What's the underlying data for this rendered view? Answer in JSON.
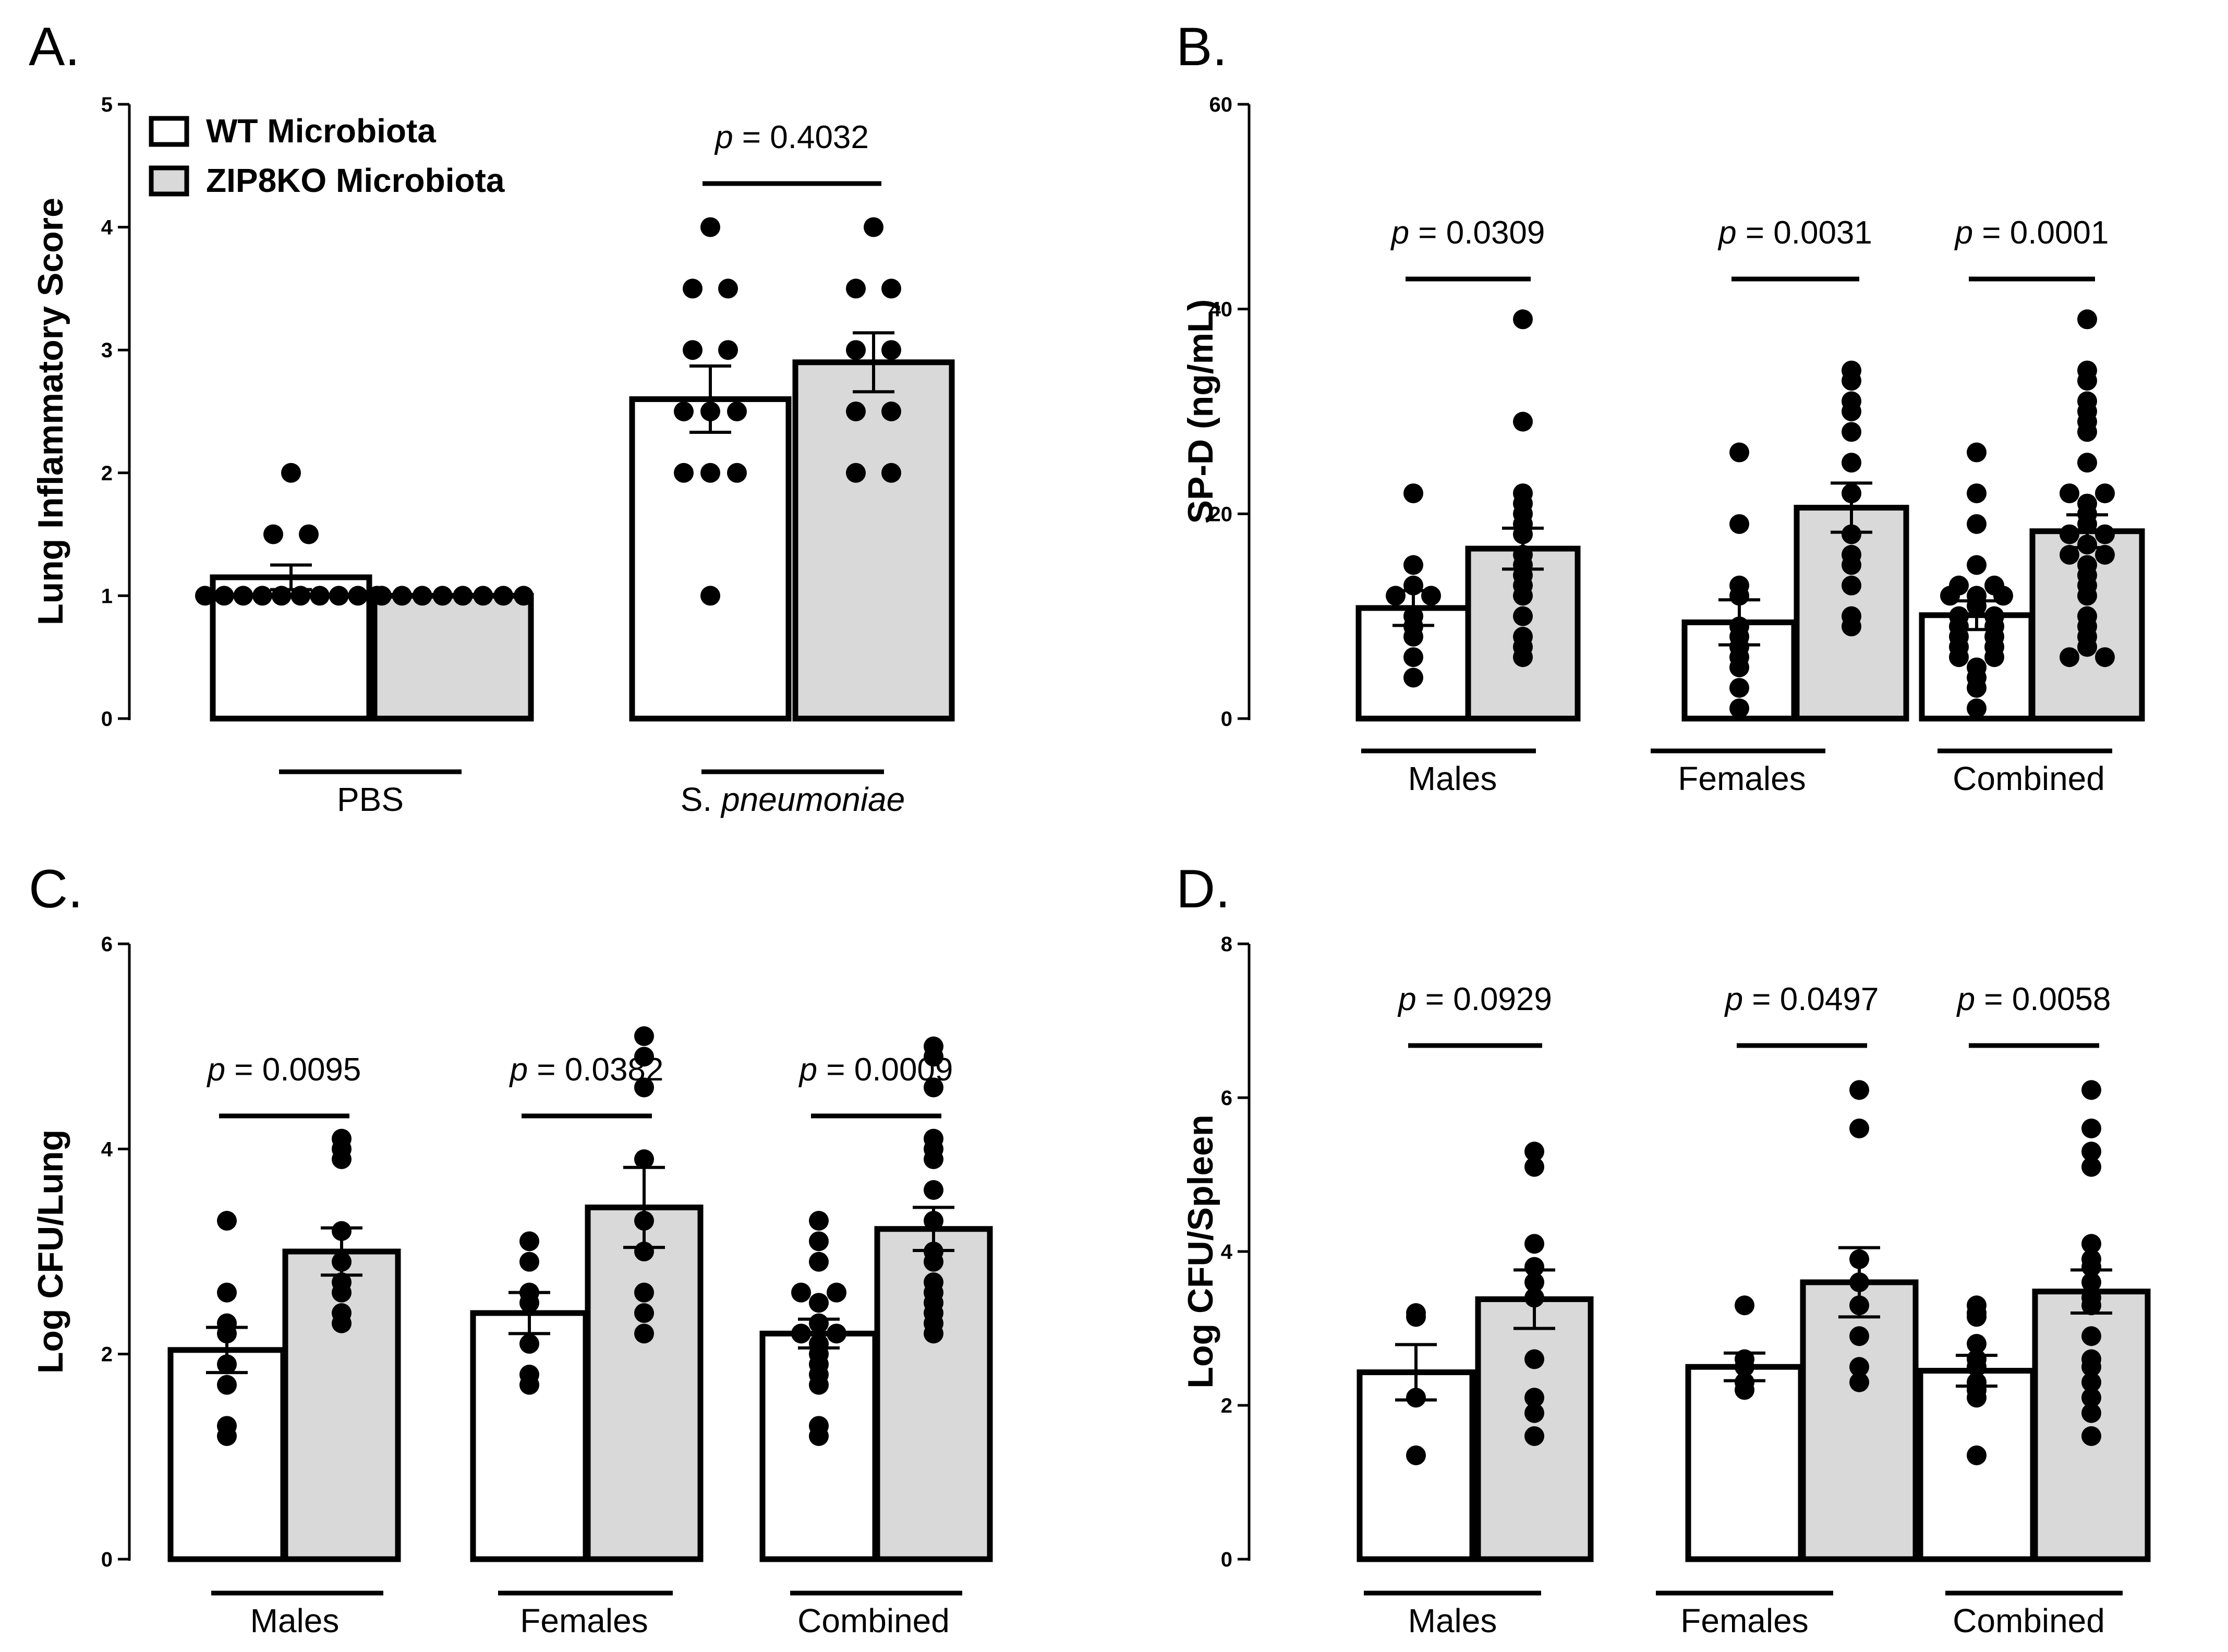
{
  "colors": {
    "wt_fill": "#ffffff",
    "ko_fill": "#d9d9d9",
    "ink": "#000000"
  },
  "legend": [
    {
      "label": "WT Microbiota",
      "color": "#ffffff"
    },
    {
      "label": "ZIP8KO Microbiota",
      "color": "#d9d9d9"
    }
  ],
  "chart_data": [
    {
      "id": "A",
      "letter": "A.",
      "type": "bar",
      "ylabel": "Lung Inflammatory Score",
      "ylim": [
        0,
        5
      ],
      "yticks": [
        0,
        1,
        2,
        3,
        4,
        5
      ],
      "groups": [
        {
          "label": "PBS",
          "label_parts": [
            {
              "t": "PBS",
              "italic": false
            }
          ],
          "means": [
            1.15,
            1.0
          ],
          "sem": [
            0.1,
            0.0
          ],
          "points": [
            [
              1,
              1,
              1,
              1,
              1,
              1,
              1,
              1,
              1,
              1,
              1.5,
              1.5,
              2
            ],
            [
              1,
              1,
              1,
              1,
              1,
              1,
              1,
              1
            ]
          ],
          "pvalue": null
        },
        {
          "label": "S. pneumoniae",
          "label_parts": [
            {
              "t": "S. ",
              "italic": false
            },
            {
              "t": "pneumoniae",
              "italic": true
            }
          ],
          "means": [
            2.6,
            2.9
          ],
          "sem": [
            0.27,
            0.24
          ],
          "points": [
            [
              1,
              2,
              2,
              2,
              2.5,
              2.5,
              2.5,
              3,
              3,
              3.5,
              3.5,
              4
            ],
            [
              2,
              2,
              2.5,
              2.5,
              3,
              3,
              3.5,
              3.5,
              4
            ]
          ],
          "pvalue": "0.4032"
        }
      ]
    },
    {
      "id": "B",
      "letter": "B.",
      "type": "bar",
      "ylabel": "SP-D (ng/mL)",
      "ylim": [
        0,
        60
      ],
      "yticks": [
        0,
        20,
        40,
        60
      ],
      "groups": [
        {
          "label": "Males",
          "label_parts": [
            {
              "t": "Males",
              "italic": false
            }
          ],
          "means": [
            10.8,
            16.6
          ],
          "sem": [
            1.7,
            2.0
          ],
          "points": [
            [
              4,
              6,
              8,
              9,
              10,
              12,
              12,
              13,
              15,
              22
            ],
            [
              6,
              7,
              8,
              10,
              12,
              13,
              14,
              15,
              16,
              18,
              19,
              20,
              21,
              22,
              29,
              39
            ]
          ],
          "pvalue": "0.0309"
        },
        {
          "label": "Females",
          "label_parts": [
            {
              "t": "Females",
              "italic": false
            }
          ],
          "means": [
            9.4,
            20.6
          ],
          "sem": [
            2.2,
            2.4
          ],
          "points": [
            [
              1,
              3,
              5,
              6,
              7,
              8,
              9,
              12,
              13,
              19,
              26
            ],
            [
              9,
              10,
              13,
              15,
              16,
              18,
              22,
              25,
              28,
              30,
              31,
              33,
              34
            ]
          ],
          "pvalue": "0.0031"
        },
        {
          "label": "Combined",
          "label_parts": [
            {
              "t": "Combined",
              "italic": false
            }
          ],
          "means": [
            10.1,
            18.3
          ],
          "sem": [
            1.4,
            1.6
          ],
          "points": [
            [
              1,
              3,
              4,
              5,
              6,
              6,
              7,
              7,
              8,
              8,
              9,
              9,
              10,
              10,
              11,
              12,
              12,
              12,
              13,
              13,
              15,
              19,
              22,
              26
            ],
            [
              6,
              6,
              7,
              8,
              9,
              10,
              12,
              13,
              14,
              15,
              16,
              16,
              17,
              18,
              18,
              19,
              20,
              21,
              22,
              22,
              25,
              28,
              29,
              30,
              31,
              33,
              34,
              39
            ]
          ],
          "pvalue": "0.0001"
        }
      ]
    },
    {
      "id": "C",
      "letter": "C.",
      "type": "bar",
      "ylabel": "Log CFU/Lung",
      "ylim": [
        0,
        6
      ],
      "yticks": [
        0,
        2,
        4,
        6
      ],
      "groups": [
        {
          "label": "Males",
          "label_parts": [
            {
              "t": "Males",
              "italic": false
            }
          ],
          "means": [
            2.04,
            3.0
          ],
          "sem": [
            0.22,
            0.23
          ],
          "points": [
            [
              1.2,
              1.3,
              1.7,
              1.9,
              2.2,
              2.3,
              2.6,
              3.3
            ],
            [
              2.3,
              2.4,
              2.6,
              2.7,
              2.9,
              3.2,
              3.9,
              4.0,
              4.1
            ]
          ],
          "pvalue": "0.0095"
        },
        {
          "label": "Females",
          "label_parts": [
            {
              "t": "Females",
              "italic": false
            }
          ],
          "means": [
            2.4,
            3.43
          ],
          "sem": [
            0.2,
            0.39
          ],
          "points": [
            [
              1.7,
              1.8,
              2.1,
              2.5,
              2.6,
              2.9,
              3.1
            ],
            [
              2.2,
              2.4,
              2.6,
              3.0,
              3.3,
              3.9,
              4.6,
              4.9,
              5.1
            ]
          ],
          "pvalue": "0.0382"
        },
        {
          "label": "Combined",
          "label_parts": [
            {
              "t": "Combined",
              "italic": false
            }
          ],
          "means": [
            2.2,
            3.22
          ],
          "sem": [
            0.14,
            0.21
          ],
          "points": [
            [
              1.2,
              1.3,
              1.7,
              1.8,
              1.9,
              2.0,
              2.1,
              2.2,
              2.2,
              2.3,
              2.5,
              2.6,
              2.6,
              2.9,
              3.1,
              3.3
            ],
            [
              2.2,
              2.3,
              2.4,
              2.5,
              2.6,
              2.7,
              2.9,
              3.0,
              3.3,
              3.6,
              3.9,
              4.0,
              4.1,
              4.6,
              4.9,
              5.0
            ]
          ],
          "pvalue": "0.0009"
        }
      ]
    },
    {
      "id": "D",
      "letter": "D.",
      "type": "bar",
      "ylabel": "Log CFU/Spleen",
      "ylim": [
        0,
        8
      ],
      "yticks": [
        0,
        2,
        4,
        6,
        8
      ],
      "groups": [
        {
          "label": "Males",
          "label_parts": [
            {
              "t": "Males",
              "italic": false
            }
          ],
          "means": [
            2.43,
            3.38
          ],
          "sem": [
            0.36,
            0.38
          ],
          "points": [
            [
              1.35,
              2.1,
              3.15,
              3.2
            ],
            [
              1.6,
              1.9,
              2.1,
              2.6,
              3.4,
              3.6,
              3.8,
              4.1,
              5.1,
              5.3
            ]
          ],
          "pvalue": "0.0929"
        },
        {
          "label": "Females",
          "label_parts": [
            {
              "t": "Females",
              "italic": false
            }
          ],
          "means": [
            2.5,
            3.6
          ],
          "sem": [
            0.18,
            0.45
          ],
          "points": [
            [
              2.2,
              2.3,
              2.5,
              2.6,
              3.3
            ],
            [
              2.3,
              2.5,
              2.9,
              3.3,
              3.6,
              3.9,
              5.6,
              6.1
            ]
          ],
          "pvalue": "0.0497"
        },
        {
          "label": "Combined",
          "label_parts": [
            {
              "t": "Combined",
              "italic": false
            }
          ],
          "means": [
            2.45,
            3.48
          ],
          "sem": [
            0.2,
            0.28
          ],
          "points": [
            [
              1.35,
              2.1,
              2.2,
              2.3,
              2.5,
              2.6,
              2.8,
              3.15,
              3.2,
              3.3
            ],
            [
              1.6,
              1.9,
              2.1,
              2.3,
              2.5,
              2.6,
              2.9,
              3.3,
              3.4,
              3.6,
              3.8,
              3.9,
              4.1,
              5.1,
              5.3,
              5.6,
              6.1
            ]
          ],
          "pvalue": "0.0058"
        }
      ]
    }
  ]
}
